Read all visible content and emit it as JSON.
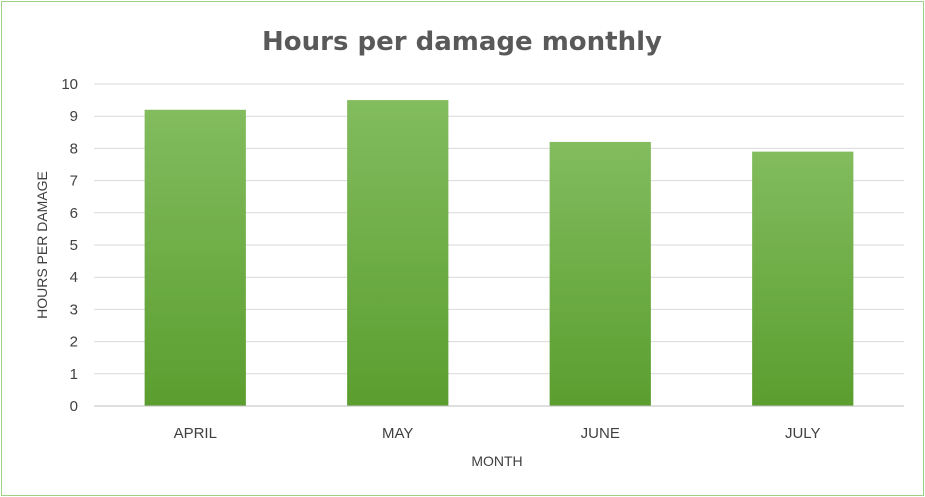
{
  "chart_data": {
    "type": "bar",
    "title": "Hours per damage monthly",
    "xlabel": "MONTH",
    "ylabel": "HOURS PER DAMAGE",
    "categories": [
      "APRIL",
      "MAY",
      "JUNE",
      "JULY"
    ],
    "values": [
      9.2,
      9.5,
      8.2,
      7.9
    ],
    "ylim": [
      0,
      10
    ],
    "yticks": [
      "0",
      "1",
      "2",
      "3",
      "4",
      "5",
      "6",
      "7",
      "8",
      "9",
      "10"
    ],
    "grid": true,
    "legend": "none",
    "colors": {
      "bar_top": "#82bc5e",
      "bar_bottom": "#5b9e2f",
      "frame": "#9fd08a",
      "grid": "#d9d9d9"
    }
  }
}
